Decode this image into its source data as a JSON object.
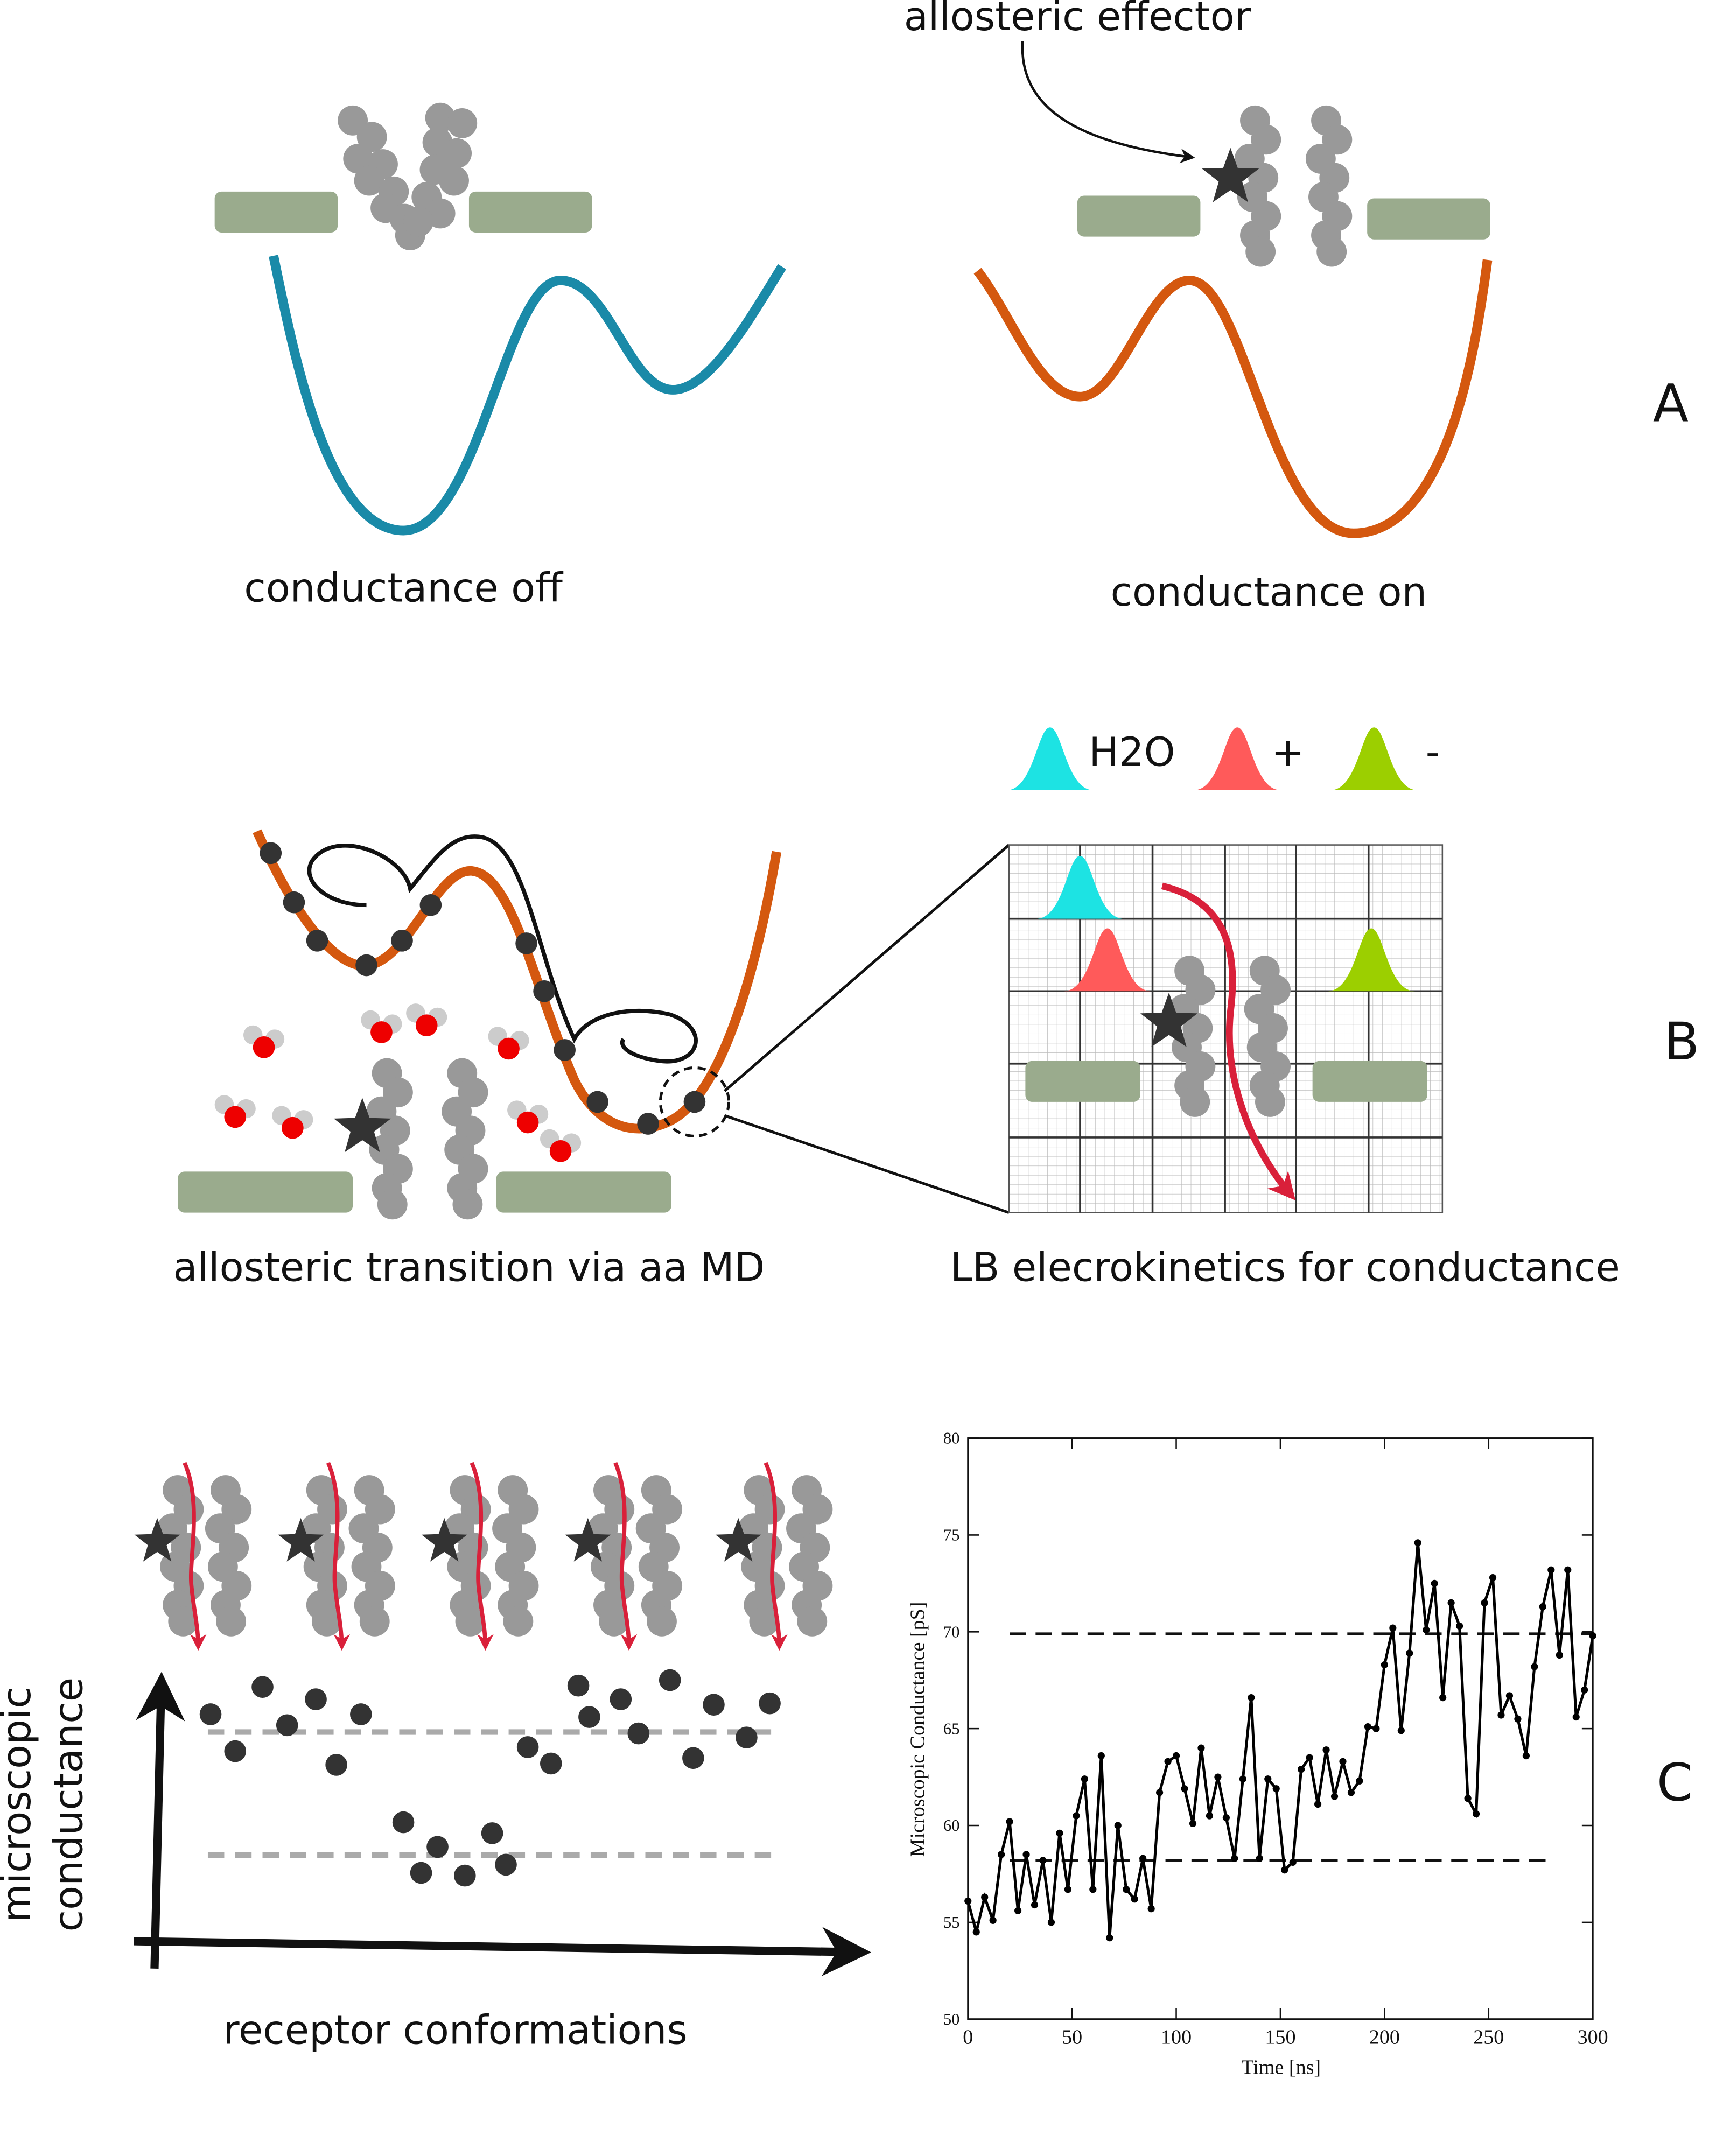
{
  "panel_a": {
    "label": "A",
    "effector": "allosteric effector",
    "left": "conductance off",
    "right": "conductance on"
  },
  "panel_b": {
    "label": "B",
    "legend": [
      "H2O",
      "+",
      "-"
    ],
    "left": "allosteric transition via aa MD",
    "right": "LB elecrokinetics for conductance"
  },
  "panel_c": {
    "label": "C",
    "y_axis_lines": [
      "microscopic",
      "conductance"
    ],
    "x_axis": "receptor conformations"
  },
  "chart_data": {
    "type": "line",
    "xlabel": "Time [ns]",
    "ylabel": "Microscopic Conductance [pS]",
    "x": [
      0,
      4,
      8,
      12,
      16,
      20,
      24,
      28,
      32,
      36,
      40,
      44,
      48,
      52,
      56,
      60,
      64,
      68,
      72,
      76,
      80,
      84,
      88,
      92,
      96,
      100,
      104,
      108,
      112,
      116,
      120,
      124,
      128,
      132,
      136,
      140,
      144,
      148,
      152,
      156,
      160,
      164,
      168,
      172,
      176,
      180,
      184,
      188,
      192,
      196,
      200,
      204,
      208,
      212,
      216,
      220,
      224,
      228,
      232,
      236,
      240,
      244,
      248,
      252,
      256,
      260,
      264,
      268,
      272,
      276,
      280,
      284,
      288,
      292,
      296,
      300
    ],
    "series": [
      {
        "color": "#000000",
        "values": [
          56.1,
          54.5,
          56.3,
          55.1,
          58.5,
          60.2,
          55.6,
          58.5,
          55.9,
          58.2,
          55,
          59.6,
          56.7,
          60.5,
          62.4,
          56.7,
          63.6,
          54.2,
          60,
          56.7,
          56.2,
          58.3,
          55.7,
          61.7,
          63.3,
          63.6,
          61.9,
          60.1,
          64,
          60.5,
          62.5,
          60.4,
          58.3,
          62.4,
          66.6,
          58.3,
          62.4,
          61.9,
          57.7,
          58.1,
          62.9,
          63.5,
          61.1,
          63.9,
          61.5,
          63.3,
          61.7,
          62.3,
          65.1,
          65,
          68.3,
          70.2,
          64.9,
          68.9,
          74.6,
          70.1,
          72.5,
          66.6,
          71.5,
          70.3,
          61.4,
          60.6,
          71.5,
          72.8,
          65.7,
          66.7,
          65.5,
          63.6,
          68.2,
          71.3,
          73.2,
          68.8,
          73.2,
          65.6,
          67,
          69.8
        ]
      }
    ],
    "xlim": [
      0,
      300
    ],
    "ylim": [
      50,
      80
    ],
    "xticks": [
      0,
      50,
      100,
      150,
      200,
      250,
      300
    ],
    "yticks": [
      50,
      55,
      60,
      65,
      70,
      75,
      80
    ],
    "reference_lines": [
      {
        "value": 58.2,
        "x": [
          20,
          280
        ]
      },
      {
        "value": 69.9,
        "x": [
          20,
          300
        ]
      }
    ]
  }
}
